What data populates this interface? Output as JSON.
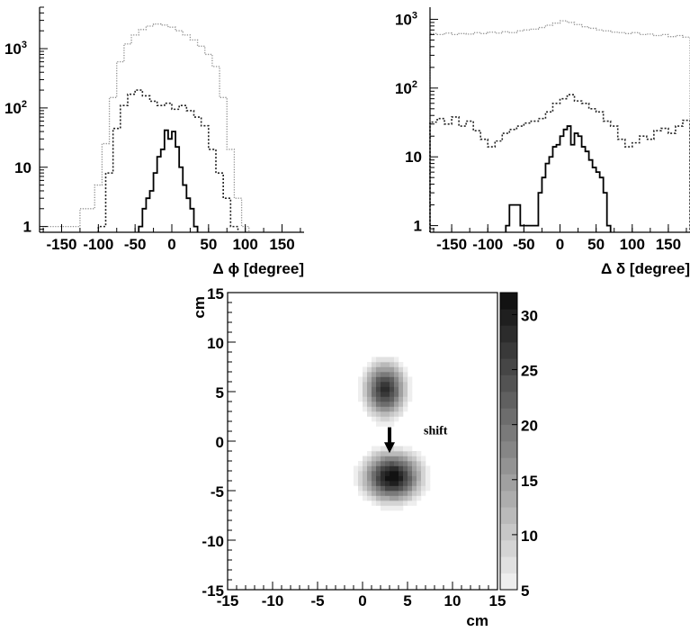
{
  "chart_data": [
    {
      "type": "line",
      "chart": "top-left",
      "xlabel": "Δ ϕ [degree]",
      "xlim": [
        -180,
        180
      ],
      "ylim": [
        0.8,
        5000
      ],
      "yscale": "log",
      "xticks": [
        -150,
        -100,
        -50,
        0,
        50,
        100,
        150
      ],
      "yticks": [
        {
          "v": 1,
          "base": "1",
          "exp": ""
        },
        {
          "v": 10,
          "base": "10",
          "exp": ""
        },
        {
          "v": 100,
          "base": "10",
          "exp": "2"
        },
        {
          "v": 1000,
          "base": "10",
          "exp": "3"
        }
      ],
      "series": [
        {
          "style": "dotted-light",
          "bins": [
            [
              -175,
              -165,
              1
            ],
            [
              -165,
              -155,
              1
            ],
            [
              -155,
              -145,
              1
            ],
            [
              -145,
              -135,
              1
            ],
            [
              -135,
              -125,
              1
            ],
            [
              -125,
              -115,
              2
            ],
            [
              -115,
              -105,
              2
            ],
            [
              -105,
              -95,
              5
            ],
            [
              -95,
              -85,
              25
            ],
            [
              -85,
              -75,
              150
            ],
            [
              -75,
              -65,
              600
            ],
            [
              -65,
              -55,
              1200
            ],
            [
              -55,
              -45,
              1700
            ],
            [
              -45,
              -35,
              2100
            ],
            [
              -35,
              -25,
              2400
            ],
            [
              -25,
              -15,
              2600
            ],
            [
              -15,
              -5,
              2500
            ],
            [
              -5,
              5,
              2300
            ],
            [
              5,
              15,
              2000
            ],
            [
              15,
              25,
              1700
            ],
            [
              25,
              35,
              1400
            ],
            [
              35,
              45,
              1100
            ],
            [
              45,
              55,
              800
            ],
            [
              55,
              65,
              500
            ],
            [
              65,
              75,
              150
            ],
            [
              75,
              85,
              20
            ],
            [
              85,
              95,
              3
            ],
            [
              95,
              105,
              1
            ]
          ]
        },
        {
          "style": "dotted-dark",
          "bins": [
            [
              -100,
              -90,
              1
            ],
            [
              -90,
              -80,
              8
            ],
            [
              -80,
              -70,
              45
            ],
            [
              -70,
              -60,
              110
            ],
            [
              -60,
              -50,
              170
            ],
            [
              -50,
              -40,
              200
            ],
            [
              -40,
              -30,
              160
            ],
            [
              -30,
              -20,
              130
            ],
            [
              -20,
              -10,
              110
            ],
            [
              -10,
              0,
              120
            ],
            [
              0,
              10,
              95
            ],
            [
              10,
              20,
              110
            ],
            [
              20,
              30,
              90
            ],
            [
              30,
              40,
              70
            ],
            [
              40,
              50,
              50
            ],
            [
              50,
              60,
              20
            ],
            [
              60,
              70,
              8
            ],
            [
              70,
              80,
              3
            ],
            [
              80,
              90,
              1
            ]
          ]
        },
        {
          "style": "solid",
          "bins": [
            [
              -45,
              -40,
              1
            ],
            [
              -40,
              -35,
              2
            ],
            [
              -35,
              -30,
              3
            ],
            [
              -30,
              -25,
              4
            ],
            [
              -25,
              -20,
              8
            ],
            [
              -20,
              -15,
              15
            ],
            [
              -15,
              -10,
              20
            ],
            [
              -10,
              -5,
              42
            ],
            [
              -5,
              0,
              30
            ],
            [
              0,
              5,
              40
            ],
            [
              5,
              10,
              22
            ],
            [
              10,
              15,
              10
            ],
            [
              15,
              20,
              5
            ],
            [
              20,
              25,
              3
            ],
            [
              25,
              30,
              2
            ],
            [
              30,
              35,
              1
            ]
          ]
        }
      ]
    },
    {
      "type": "line",
      "chart": "top-right",
      "xlabel": "Δ δ [degree]",
      "xlim": [
        -180,
        180
      ],
      "ylim": [
        0.8,
        1500
      ],
      "yscale": "log",
      "xticks": [
        -150,
        -100,
        -50,
        0,
        50,
        100,
        150
      ],
      "yticks": [
        {
          "v": 1,
          "base": "1",
          "exp": ""
        },
        {
          "v": 10,
          "base": "10",
          "exp": ""
        },
        {
          "v": 100,
          "base": "10",
          "exp": "2"
        },
        {
          "v": 1000,
          "base": "10",
          "exp": "3"
        }
      ],
      "series": [
        {
          "style": "dotted-light",
          "bins": [
            [
              -180,
              -170,
              620
            ],
            [
              -170,
              -160,
              600
            ],
            [
              -160,
              -150,
              630
            ],
            [
              -150,
              -140,
              600
            ],
            [
              -140,
              -130,
              620
            ],
            [
              -130,
              -120,
              610
            ],
            [
              -120,
              -110,
              640
            ],
            [
              -110,
              -100,
              620
            ],
            [
              -100,
              -90,
              650
            ],
            [
              -90,
              -80,
              630
            ],
            [
              -80,
              -70,
              660
            ],
            [
              -70,
              -60,
              640
            ],
            [
              -60,
              -50,
              680
            ],
            [
              -50,
              -40,
              700
            ],
            [
              -40,
              -30,
              720
            ],
            [
              -30,
              -20,
              760
            ],
            [
              -20,
              -10,
              820
            ],
            [
              -10,
              0,
              880
            ],
            [
              0,
              10,
              950
            ],
            [
              10,
              20,
              900
            ],
            [
              20,
              30,
              840
            ],
            [
              30,
              40,
              780
            ],
            [
              40,
              50,
              740
            ],
            [
              50,
              60,
              700
            ],
            [
              60,
              70,
              680
            ],
            [
              70,
              80,
              650
            ],
            [
              80,
              90,
              640
            ],
            [
              90,
              100,
              620
            ],
            [
              100,
              110,
              640
            ],
            [
              110,
              120,
              600
            ],
            [
              120,
              130,
              610
            ],
            [
              130,
              140,
              580
            ],
            [
              140,
              150,
              600
            ],
            [
              150,
              160,
              560
            ],
            [
              160,
              170,
              580
            ],
            [
              170,
              180,
              550
            ]
          ]
        },
        {
          "style": "dotted-dark",
          "bins": [
            [
              -180,
              -170,
              32
            ],
            [
              -170,
              -160,
              36
            ],
            [
              -160,
              -150,
              30
            ],
            [
              -150,
              -140,
              38
            ],
            [
              -140,
              -130,
              28
            ],
            [
              -130,
              -120,
              33
            ],
            [
              -120,
              -110,
              24
            ],
            [
              -110,
              -100,
              18
            ],
            [
              -100,
              -90,
              14
            ],
            [
              -90,
              -80,
              17
            ],
            [
              -80,
              -70,
              22
            ],
            [
              -70,
              -60,
              25
            ],
            [
              -60,
              -50,
              28
            ],
            [
              -50,
              -40,
              31
            ],
            [
              -40,
              -30,
              33
            ],
            [
              -30,
              -20,
              36
            ],
            [
              -20,
              -10,
              45
            ],
            [
              -10,
              0,
              60
            ],
            [
              0,
              10,
              70
            ],
            [
              10,
              20,
              80
            ],
            [
              20,
              30,
              65
            ],
            [
              30,
              40,
              60
            ],
            [
              40,
              50,
              50
            ],
            [
              50,
              60,
              45
            ],
            [
              60,
              70,
              33
            ],
            [
              70,
              80,
              28
            ],
            [
              80,
              90,
              18
            ],
            [
              90,
              100,
              14
            ],
            [
              100,
              110,
              16
            ],
            [
              110,
              120,
              20
            ],
            [
              120,
              130,
              18
            ],
            [
              130,
              140,
              24
            ],
            [
              140,
              150,
              26
            ],
            [
              150,
              160,
              22
            ],
            [
              160,
              170,
              28
            ],
            [
              170,
              180,
              34
            ]
          ]
        },
        {
          "style": "solid",
          "bins": [
            [
              -75,
              -70,
              1
            ],
            [
              -70,
              -65,
              2
            ],
            [
              -65,
              -60,
              2
            ],
            [
              -60,
              -55,
              2
            ],
            [
              -55,
              -50,
              1
            ],
            [
              -50,
              -45,
              1
            ],
            [
              -45,
              -40,
              1
            ],
            [
              -40,
              -35,
              1
            ],
            [
              -35,
              -30,
              1
            ],
            [
              -30,
              -25,
              3
            ],
            [
              -25,
              -20,
              5
            ],
            [
              -20,
              -15,
              8
            ],
            [
              -15,
              -10,
              10
            ],
            [
              -10,
              -5,
              14
            ],
            [
              -5,
              0,
              15
            ],
            [
              0,
              5,
              20
            ],
            [
              5,
              10,
              25
            ],
            [
              10,
              15,
              28
            ],
            [
              15,
              20,
              15
            ],
            [
              20,
              25,
              22
            ],
            [
              25,
              30,
              20
            ],
            [
              30,
              35,
              14
            ],
            [
              35,
              40,
              12
            ],
            [
              40,
              45,
              9
            ],
            [
              45,
              50,
              7
            ],
            [
              50,
              55,
              6
            ],
            [
              55,
              60,
              5
            ],
            [
              60,
              65,
              3
            ],
            [
              65,
              70,
              1
            ]
          ]
        }
      ]
    },
    {
      "type": "heatmap",
      "chart": "bottom",
      "xlabel": "cm",
      "ylabel": "cm",
      "xlim": [
        -15,
        15
      ],
      "ylim": [
        -15,
        15
      ],
      "xticks": [
        -15,
        -10,
        -5,
        0,
        5,
        10,
        15
      ],
      "yticks": [
        -15,
        -10,
        -5,
        0,
        5,
        10,
        15
      ],
      "zlim": [
        5,
        32
      ],
      "zticks": [
        5,
        10,
        15,
        20,
        25,
        30
      ],
      "blobs": [
        {
          "cx": 2.5,
          "cy": 5.2,
          "peak": 28,
          "sx": 1.6,
          "sy": 1.9
        },
        {
          "cx": 3.3,
          "cy": -3.6,
          "peak": 32,
          "sx": 2.2,
          "sy": 1.7
        }
      ],
      "annotation": "shift",
      "arrow": {
        "from": [
          3.0,
          1.4
        ],
        "to": [
          3.0,
          -1.2
        ]
      }
    }
  ]
}
